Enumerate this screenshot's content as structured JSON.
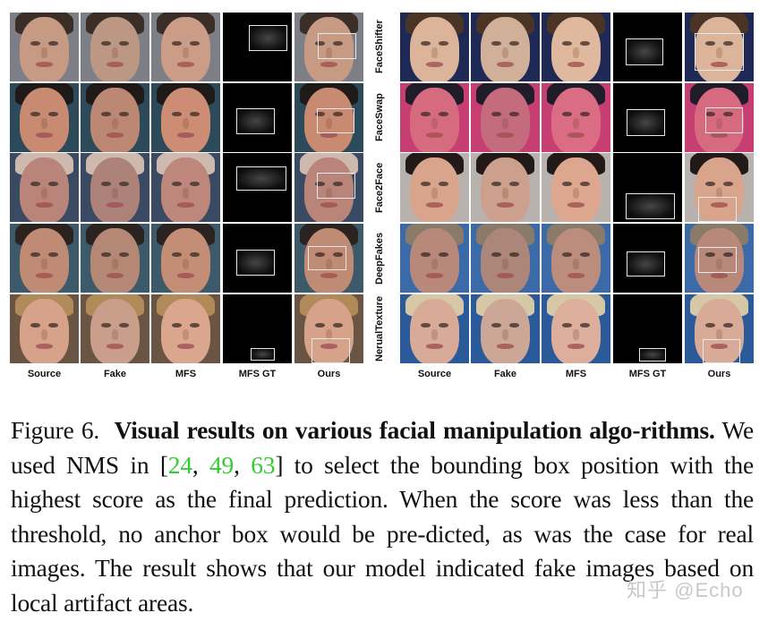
{
  "figure": {
    "column_labels": [
      "Source",
      "Fake",
      "MFS",
      "MFS GT",
      "Ours"
    ],
    "row_labels": [
      "FaceShifter",
      "FaceSwap",
      "Face2Face",
      "DeepFakes",
      "NerualTexture"
    ],
    "left_panel": {
      "rows": [
        {
          "method": "FaceShifter",
          "skin": "#c79a83",
          "hair": "#3b2e27",
          "bg": "#7d7f86",
          "gt_box": [
            0.38,
            0.18,
            0.55,
            0.38
          ],
          "pred_box": [
            0.34,
            0.3,
            0.55,
            0.38
          ]
        },
        {
          "method": "FaceSwap",
          "skin": "#c98a72",
          "hair": "#1f1a18",
          "bg": "#2d4a5a",
          "gt_box": [
            0.2,
            0.37,
            0.55,
            0.37
          ],
          "pred_box": [
            0.32,
            0.37,
            0.55,
            0.36
          ]
        },
        {
          "method": "Face2Face",
          "skin": "#b9847a",
          "hair": "#cdb9ae",
          "bg": "#3b4a63",
          "gt_box": [
            0.2,
            0.2,
            0.72,
            0.35
          ],
          "pred_box": [
            0.33,
            0.28,
            0.55,
            0.38
          ]
        },
        {
          "method": "DeepFakes",
          "skin": "#c08b74",
          "hair": "#2a2320",
          "bg": "#3c5a6a",
          "gt_box": [
            0.2,
            0.38,
            0.55,
            0.37
          ],
          "pred_box": [
            0.2,
            0.33,
            0.55,
            0.35
          ]
        },
        {
          "method": "NerualTexture",
          "skin": "#d6a38a",
          "hair": "#b08a58",
          "bg": "#6a5545",
          "gt_box": [
            0.4,
            0.78,
            0.35,
            0.18
          ],
          "pred_box": [
            0.25,
            0.63,
            0.55,
            0.37
          ]
        }
      ]
    },
    "right_panel": {
      "rows": [
        {
          "method": "FaceShifter",
          "skin": "#dcb49a",
          "hair": "#4a3426",
          "bg": "#1e2a55",
          "gt_box": [
            0.18,
            0.38,
            0.55,
            0.38
          ],
          "pred_box": [
            0.14,
            0.3,
            0.72,
            0.55
          ]
        },
        {
          "method": "FaceSwap",
          "skin": "#d66b80",
          "hair": "#201c2a",
          "bg": "#c73e73",
          "gt_box": [
            0.2,
            0.38,
            0.55,
            0.38
          ],
          "pred_box": [
            0.3,
            0.35,
            0.55,
            0.38
          ]
        },
        {
          "method": "Face2Face",
          "skin": "#d9a48c",
          "hair": "#221a18",
          "bg": "#b8b2ae",
          "gt_box": [
            0.18,
            0.58,
            0.72,
            0.38
          ],
          "pred_box": [
            0.2,
            0.64,
            0.55,
            0.36
          ]
        },
        {
          "method": "DeepFakes",
          "skin": "#b8897a",
          "hair": "#8a7a6a",
          "bg": "#3a6aa8",
          "gt_box": [
            0.2,
            0.4,
            0.55,
            0.37
          ],
          "pred_box": [
            0.2,
            0.34,
            0.55,
            0.37
          ]
        },
        {
          "method": "NerualTexture",
          "skin": "#d8ab98",
          "hair": "#d6c8a6",
          "bg": "#2a5a9a",
          "gt_box": [
            0.38,
            0.78,
            0.38,
            0.2
          ],
          "pred_box": [
            0.26,
            0.65,
            0.55,
            0.35
          ]
        }
      ]
    }
  },
  "caption": {
    "label": "Figure 6.",
    "title": "Visual results on various facial manipulation algo-rithms.",
    "text_before_cites": "We used NMS in [",
    "citations": [
      "24",
      "49",
      "63"
    ],
    "text_after_cites": "] to select the bounding box position with the highest score as the final prediction. When the score was less than the threshold, no anchor box would be pre-dicted, as was the case for real images. The result shows that our model indicated fake images based on local artifact areas.",
    "citation_color": "#33cc33"
  },
  "watermark": "知乎 @Echo"
}
